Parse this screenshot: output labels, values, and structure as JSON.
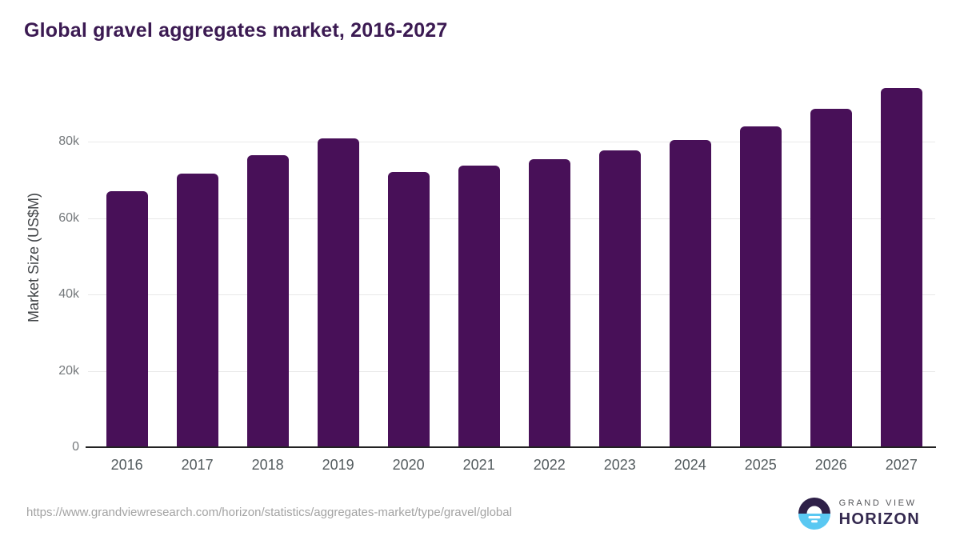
{
  "title": "Global gravel aggregates market, 2016-2027",
  "footer": {
    "source_url": "https://www.grandviewresearch.com/horizon/statistics/aggregates-market/type/gravel/global",
    "logo": {
      "brand_top": "GRAND VIEW",
      "brand_bottom": "HORIZON",
      "icon": "sunrise-horizon-icon"
    }
  },
  "colors": {
    "bar": "#481058",
    "title": "#3b1a52",
    "axis_line": "#222222",
    "gridline": "#e9e9e9",
    "y_tick_label": "#75797c",
    "year_label": "#535b5e",
    "y_axis_title": "#414447",
    "url_text": "#a3a3a3",
    "logo_dark": "#2e2048",
    "logo_blue": "#5ac8f2"
  },
  "chart_data": {
    "type": "bar",
    "title": "Global gravel aggregates market, 2016-2027",
    "categories": [
      "2016",
      "2017",
      "2018",
      "2019",
      "2020",
      "2021",
      "2022",
      "2023",
      "2024",
      "2025",
      "2026",
      "2027"
    ],
    "values": [
      67000,
      71600,
      76400,
      80900,
      72000,
      73700,
      75400,
      77600,
      80400,
      84000,
      88500,
      94000
    ],
    "xlabel": "",
    "ylabel": "Market Size (US$M)",
    "yticks": [
      {
        "label": "0",
        "value": 0
      },
      {
        "label": "20k",
        "value": 20000
      },
      {
        "label": "40k",
        "value": 40000
      },
      {
        "label": "60k",
        "value": 60000
      },
      {
        "label": "80k",
        "value": 80000
      }
    ],
    "ylim": [
      0,
      96000
    ],
    "grid": "horizontal",
    "legend": "none",
    "bar_color": "#481058"
  }
}
